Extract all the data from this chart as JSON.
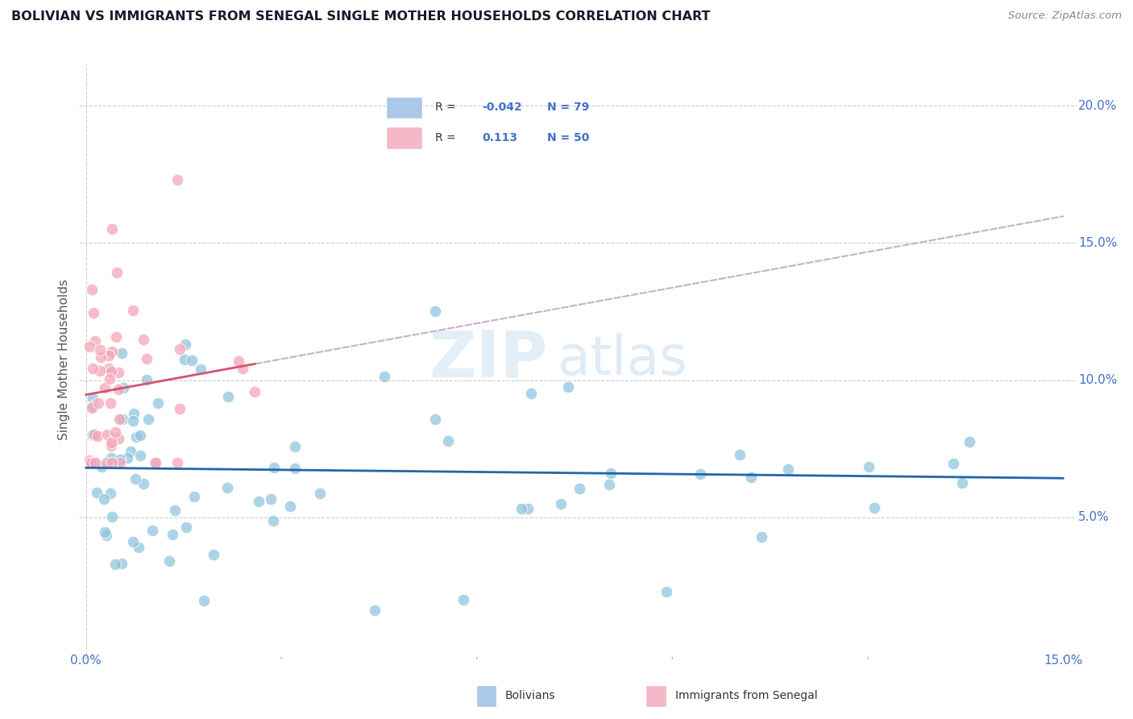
{
  "title": "BOLIVIAN VS IMMIGRANTS FROM SENEGAL SINGLE MOTHER HOUSEHOLDS CORRELATION CHART",
  "source": "Source: ZipAtlas.com",
  "ylabel": "Single Mother Households",
  "xlabel_bolivian": "Bolivians",
  "xlabel_senegal": "Immigrants from Senegal",
  "watermark_zip": "ZIP",
  "watermark_atlas": "atlas",
  "xlim": [
    0.0,
    0.15
  ],
  "ylim": [
    0.0,
    0.21
  ],
  "color_bolivian": "#92c5de",
  "color_senegal": "#f4a6b8",
  "line_color_bolivian": "#2166ac",
  "line_color_senegal": "#d6546e",
  "dashed_color": "#c9b0c4",
  "ytick_color": "#4472c4",
  "xtick_color": "#4472c4",
  "title_color": "#1a1a2e",
  "source_color": "#888888",
  "ylabel_color": "#555555",
  "grid_color": "#cccccc",
  "legend_border_color": "#cccccc",
  "legend_sq_bolivian": "#aac8e8",
  "legend_sq_senegal": "#f5b8c8"
}
